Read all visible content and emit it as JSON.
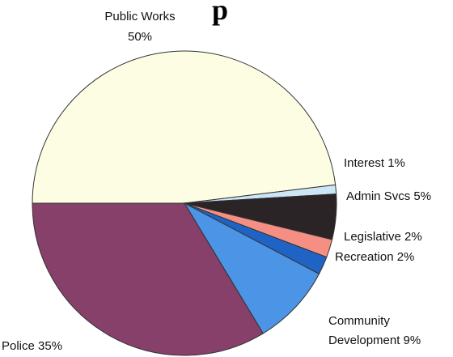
{
  "chart_data": {
    "type": "pie",
    "title_fragment": "p",
    "slices": [
      {
        "label": "Public Works",
        "value": 50,
        "text": "50%",
        "color": "#fdfde3"
      },
      {
        "label": "Interest",
        "value": 1,
        "text": "1%",
        "color": "#cde6f6"
      },
      {
        "label": "Admin Svcs",
        "value": 5,
        "text": "5%",
        "color": "#2b2426"
      },
      {
        "label": "Legislative",
        "value": 2,
        "text": "2%",
        "color": "#f58f84"
      },
      {
        "label": "Recreation",
        "value": 2,
        "text": "2%",
        "color": "#1f63c4"
      },
      {
        "label": "Community Development",
        "value": 9,
        "text": "9%",
        "color": "#4b94e6"
      },
      {
        "label": "Police",
        "value": 35,
        "text": "35%",
        "color": "#86406a"
      }
    ],
    "labels": {
      "public_works_name": "Public Works",
      "public_works_pct": "50%",
      "interest": "Interest 1%",
      "admin": "Admin Svcs 5%",
      "legislative": "Legislative 2%",
      "recreation": "Recreation 2%",
      "community_line1": "Community",
      "community_line2": "Development 9%",
      "police": "Police 35%"
    },
    "recreation_label_color": "#1f63c4"
  }
}
